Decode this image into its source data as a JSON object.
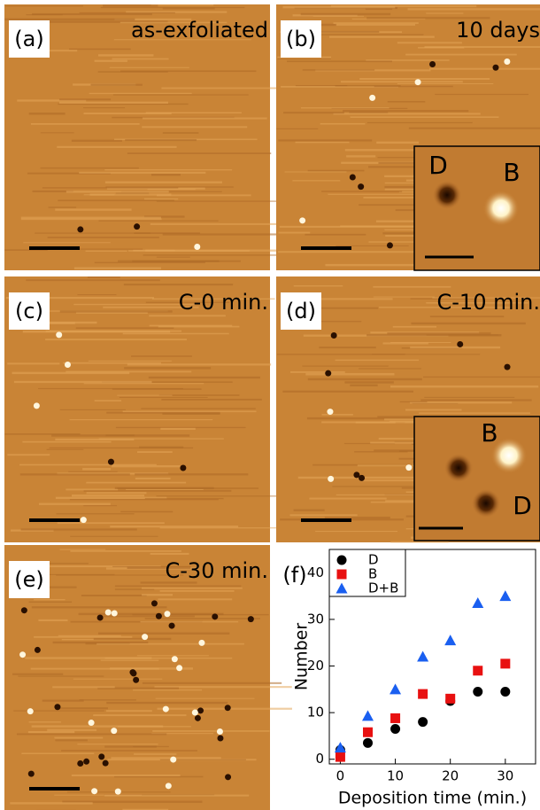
{
  "panels": [
    {
      "label": "(a)",
      "caption": "as-exfoliated"
    },
    {
      "label": "(b)",
      "caption": "10 days",
      "inset": [
        "D",
        "B"
      ]
    },
    {
      "label": "(c)",
      "caption": "C-0 min."
    },
    {
      "label": "(d)",
      "caption": "C-10 min.",
      "inset": [
        "B",
        "D"
      ]
    },
    {
      "label": "(e)",
      "caption": "C-30 min."
    }
  ],
  "chart_data": {
    "type": "scatter",
    "panel_label": "(f)",
    "xlabel": "Deposition time (min.)",
    "ylabel": "Number",
    "x": [
      0,
      5,
      10,
      15,
      20,
      25,
      30
    ],
    "series": [
      {
        "name": "D",
        "color": "#000000",
        "marker": "circle",
        "values": [
          2,
          3.5,
          6.5,
          8,
          12.5,
          14.5,
          14.5
        ]
      },
      {
        "name": "B",
        "color": "#e81010",
        "marker": "square",
        "values": [
          0.5,
          5.8,
          8.8,
          14,
          13,
          19,
          20.5
        ]
      },
      {
        "name": "D+B",
        "color": "#1a5ff0",
        "marker": "triangle",
        "values": [
          2.5,
          9.3,
          15,
          22,
          25.5,
          33.5,
          35
        ]
      }
    ],
    "xlim": [
      -2,
      35.5
    ],
    "ylim": [
      -1,
      45
    ],
    "xticks": [
      0,
      10,
      20,
      30
    ],
    "yticks": [
      0,
      10,
      20,
      30,
      40
    ],
    "legend": "upper left"
  }
}
